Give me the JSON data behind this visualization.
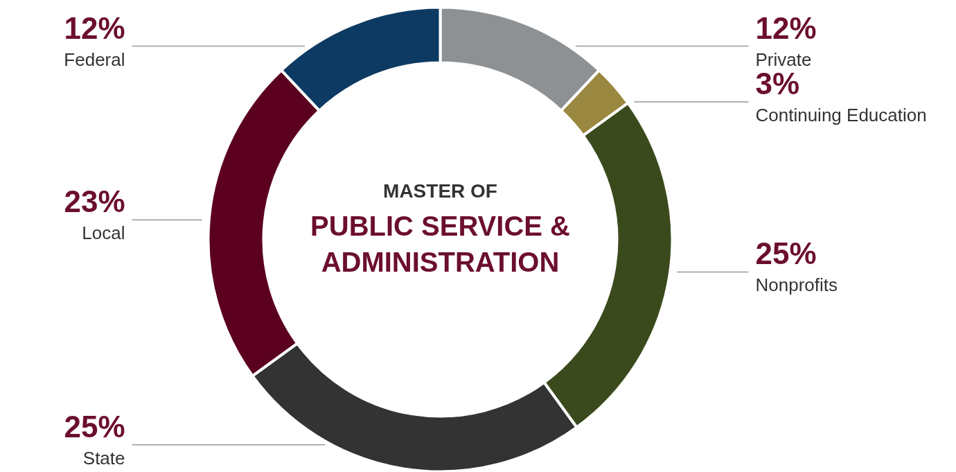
{
  "chart_data": {
    "type": "donut",
    "title": "PUBLIC SERVICE & ADMINISTRATION",
    "subtitle": "MASTER OF",
    "categories": [
      "Private",
      "Continuing Education",
      "Nonprofits",
      "State",
      "Local",
      "Federal"
    ],
    "values": [
      12,
      3,
      25,
      25,
      23,
      12
    ],
    "value_labels": [
      "12%",
      "3%",
      "25%",
      "25%",
      "23%",
      "12%"
    ],
    "colors": [
      "#8e9194",
      "#9a8840",
      "#3b4a1c",
      "#333333",
      "#5c0020",
      "#0d3a63"
    ]
  }
}
